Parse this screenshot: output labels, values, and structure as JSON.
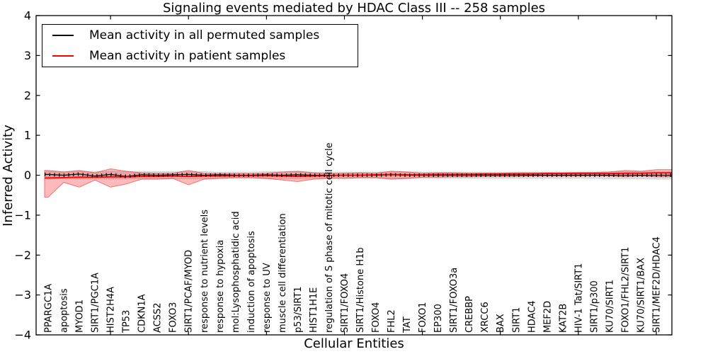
{
  "title": "Signaling events mediated by HDAC Class III -- 258 samples",
  "axes": {
    "xlabel": "Cellular Entities",
    "ylabel": "Inferred Activity",
    "ytick_labels": [
      "4",
      "3",
      "2",
      "1",
      "0",
      "−1",
      "−2",
      "−3",
      "−4"
    ],
    "ytick_values": [
      4,
      3,
      2,
      1,
      0,
      -1,
      -2,
      -3,
      -4
    ],
    "x_major_tick_entity_numbers": [
      5,
      10,
      15,
      20,
      25,
      30,
      35,
      40
    ],
    "ylim": [
      -4,
      4
    ]
  },
  "legend": {
    "items": [
      {
        "label": "Mean activity in all permuted samples",
        "color": "#000000"
      },
      {
        "label": "Mean activity in patient samples",
        "color": "#ff0000"
      }
    ]
  },
  "colors": {
    "frame": "#000000",
    "permuted_line": "#000000",
    "patient_line": "#ff0000",
    "patient_band_fill": "rgba(255,30,30,0.30)",
    "patient_band_edge": "rgba(220,30,30,0.55)",
    "permuted_band_fill": "rgba(0,0,0,0.12)",
    "permuted_band_edge": "rgba(0,0,0,0.10)"
  },
  "chart_data": {
    "type": "line",
    "title": "Signaling events mediated by HDAC Class III -- 258 samples",
    "xlabel": "Cellular Entities",
    "ylabel": "Inferred Activity",
    "ylim": [
      -4,
      4
    ],
    "grid": false,
    "legend_position": "upper left",
    "x_major_ticks": [
      5,
      10,
      15,
      20,
      25,
      30,
      35,
      40
    ],
    "categories": [
      "PPARGC1A",
      "apoptosis",
      "MYOD1",
      "SIRT1/PGC1A",
      "HIST2H4A",
      "TP53",
      "CDKN1A",
      "ACSS2",
      "FOXO3",
      "SIRT1/PCAF/MYOD",
      "response to nutrient levels",
      "response to hypoxia",
      "mol:Lysophosphatidic acid",
      "induction of apoptosis",
      "response to UV",
      "muscle cell differentiation",
      "p53/SIRT1",
      "HIST1H1E",
      "regulation of S phase of mitotic cell cycle",
      "SIRT1/FOXO4",
      "SIRT1/Histone H1b",
      "FOXO4",
      "FHL2",
      "TAT",
      "FOXO1",
      "EP300",
      "SIRT1/FOXO3a",
      "CREBBP",
      "XRCC6",
      "BAX",
      "SIRT1",
      "HDAC4",
      "MEF2D",
      "KAT2B",
      "HIV-1 Tat/SIRT1",
      "SIRT1/p300",
      "KU70/SIRT1",
      "FOXO1/FHL2/SIRT1",
      "KU70/SIRT1/BAX",
      "SIRT1/MEF2D/HDAC4"
    ],
    "series": [
      {
        "name": "Mean activity in all permuted samples",
        "color": "#000000",
        "values": [
          0.02,
          0.0,
          0.03,
          -0.02,
          0.02,
          -0.03,
          0.01,
          0.0,
          0.01,
          0.02,
          0.0,
          0.01,
          0.0,
          0.0,
          0.01,
          0.0,
          0.01,
          0.0,
          0.0,
          0.0,
          0.0,
          0.0,
          0.01,
          0.0,
          0.0,
          0.0,
          0.0,
          0.0,
          0.0,
          0.0,
          0.0,
          0.0,
          0.0,
          0.0,
          0.0,
          0.0,
          0.0,
          0.0,
          0.0,
          0.0
        ],
        "band_hi": [
          0.1,
          0.09,
          0.1,
          0.09,
          0.1,
          0.09,
          0.09,
          0.09,
          0.09,
          0.09,
          0.09,
          0.08,
          0.08,
          0.08,
          0.09,
          0.09,
          0.09,
          0.08,
          0.08,
          0.08,
          0.08,
          0.08,
          0.09,
          0.09,
          0.08,
          0.08,
          0.08,
          0.08,
          0.08,
          0.08,
          0.08,
          0.08,
          0.08,
          0.08,
          0.08,
          0.08,
          0.09,
          0.09,
          0.09,
          0.09
        ],
        "band_lo": [
          -0.1,
          -0.09,
          -0.1,
          -0.09,
          -0.1,
          -0.09,
          -0.09,
          -0.09,
          -0.09,
          -0.09,
          -0.09,
          -0.08,
          -0.08,
          -0.08,
          -0.09,
          -0.09,
          -0.09,
          -0.08,
          -0.08,
          -0.08,
          -0.08,
          -0.08,
          -0.09,
          -0.09,
          -0.08,
          -0.08,
          -0.08,
          -0.08,
          -0.08,
          -0.08,
          -0.08,
          -0.08,
          -0.08,
          -0.08,
          -0.08,
          -0.08,
          -0.09,
          -0.09,
          -0.09,
          -0.1
        ]
      },
      {
        "name": "Mean activity in patient samples",
        "color": "#ff0000",
        "values": [
          -0.07,
          -0.06,
          -0.05,
          -0.05,
          -0.04,
          -0.04,
          -0.03,
          -0.03,
          -0.02,
          -0.03,
          -0.02,
          -0.02,
          -0.01,
          -0.01,
          -0.01,
          -0.02,
          -0.03,
          -0.02,
          -0.01,
          0.0,
          0.0,
          0.01,
          0.02,
          0.01,
          0.01,
          0.02,
          0.02,
          0.02,
          0.03,
          0.03,
          0.03,
          0.03,
          0.04,
          0.04,
          0.04,
          0.04,
          0.04,
          0.05,
          0.05,
          0.06
        ],
        "band_hi": [
          0.12,
          0.08,
          0.12,
          0.06,
          0.16,
          0.1,
          0.06,
          0.05,
          0.05,
          0.12,
          0.05,
          0.04,
          0.04,
          0.04,
          0.05,
          0.08,
          0.1,
          0.06,
          0.04,
          0.05,
          0.06,
          0.05,
          0.1,
          0.08,
          0.05,
          0.06,
          0.06,
          0.05,
          0.05,
          0.05,
          0.06,
          0.06,
          0.06,
          0.06,
          0.07,
          0.07,
          0.08,
          0.12,
          0.1,
          0.14
        ],
        "band_lo": [
          -0.55,
          -0.18,
          -0.3,
          -0.12,
          -0.3,
          -0.22,
          -0.1,
          -0.1,
          -0.08,
          -0.24,
          -0.1,
          -0.08,
          -0.06,
          -0.06,
          -0.08,
          -0.12,
          -0.16,
          -0.1,
          -0.08,
          -0.08,
          -0.06,
          -0.06,
          -0.1,
          -0.08,
          -0.05,
          -0.05,
          -0.04,
          -0.04,
          -0.03,
          -0.03,
          -0.03,
          -0.02,
          -0.02,
          -0.02,
          -0.02,
          -0.01,
          -0.02,
          -0.04,
          -0.02,
          -0.04
        ]
      }
    ]
  }
}
